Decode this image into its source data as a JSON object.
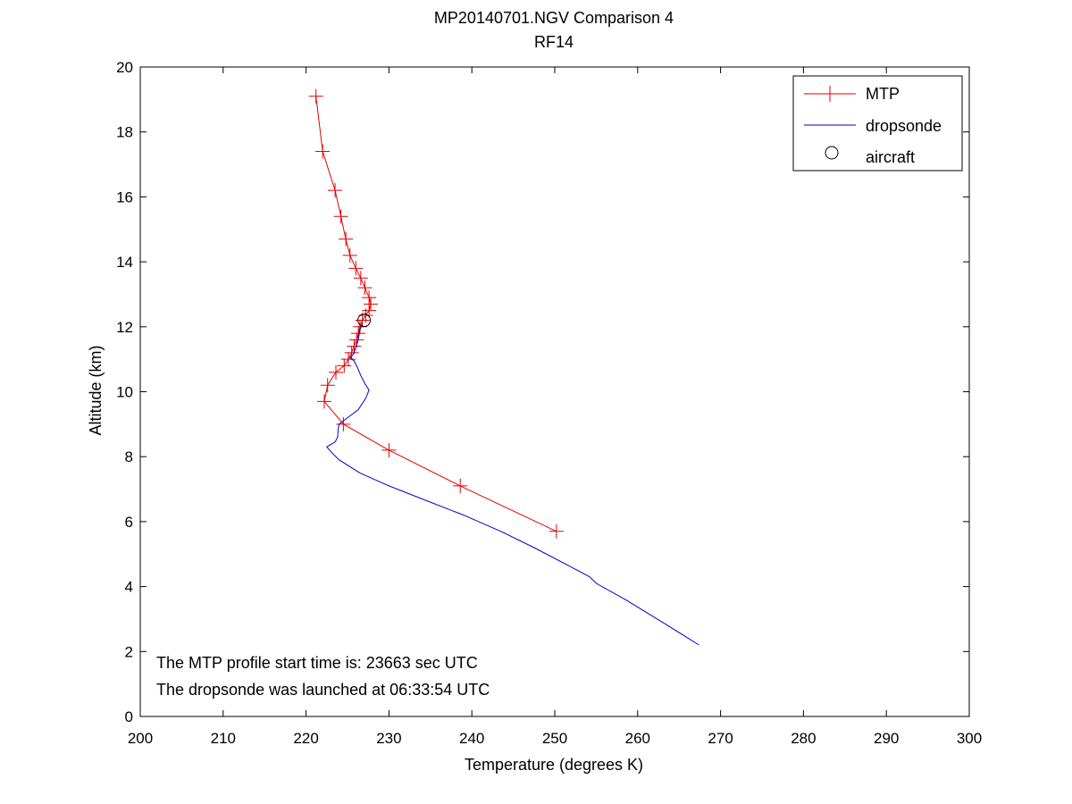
{
  "chart_data": {
    "type": "line",
    "title": "MP20140701.NGV Comparison 4",
    "subtitle": "RF14",
    "xlabel": "Temperature (degrees K)",
    "ylabel": "Altitude (km)",
    "xlim": [
      200,
      300
    ],
    "ylim": [
      0,
      20
    ],
    "x_ticks": [
      200,
      210,
      220,
      230,
      240,
      250,
      260,
      270,
      280,
      290,
      300
    ],
    "y_ticks": [
      0,
      2,
      4,
      6,
      8,
      10,
      12,
      14,
      16,
      18,
      20
    ],
    "grid": false,
    "legend_position": "top-right",
    "annotations": [
      "The MTP profile start time is: 23663 sec UTC",
      "The dropsonde was launched at 06:33:54 UTC"
    ],
    "series": [
      {
        "name": "MTP",
        "color": "#e00000",
        "marker": "plus",
        "points": [
          [
            221.2,
            19.1
          ],
          [
            222.0,
            17.4
          ],
          [
            223.5,
            16.2
          ],
          [
            224.2,
            15.4
          ],
          [
            224.8,
            14.7
          ],
          [
            225.3,
            14.2
          ],
          [
            226.0,
            13.8
          ],
          [
            226.6,
            13.5
          ],
          [
            227.1,
            13.2
          ],
          [
            227.6,
            12.9
          ],
          [
            227.8,
            12.7
          ],
          [
            227.6,
            12.5
          ],
          [
            227.2,
            12.35
          ],
          [
            226.8,
            12.2
          ],
          [
            226.5,
            12.0
          ],
          [
            226.3,
            11.8
          ],
          [
            226.1,
            11.6
          ],
          [
            225.8,
            11.4
          ],
          [
            225.5,
            11.2
          ],
          [
            225.1,
            11.0
          ],
          [
            224.6,
            10.8
          ],
          [
            223.6,
            10.6
          ],
          [
            222.6,
            10.2
          ],
          [
            222.2,
            9.7
          ],
          [
            224.5,
            9.0
          ],
          [
            230.0,
            8.2
          ],
          [
            238.6,
            7.1
          ],
          [
            250.2,
            5.7
          ]
        ]
      },
      {
        "name": "dropsonde",
        "color": "#0000cc",
        "marker": "none",
        "points": [
          [
            267.4,
            2.2
          ],
          [
            263.0,
            2.9
          ],
          [
            258.5,
            3.6
          ],
          [
            255.0,
            4.1
          ],
          [
            254.2,
            4.3
          ],
          [
            252.0,
            4.6
          ],
          [
            247.5,
            5.2
          ],
          [
            243.5,
            5.7
          ],
          [
            239.0,
            6.2
          ],
          [
            234.0,
            6.7
          ],
          [
            230.0,
            7.1
          ],
          [
            226.5,
            7.5
          ],
          [
            224.0,
            7.9
          ],
          [
            223.2,
            8.1
          ],
          [
            222.5,
            8.3
          ],
          [
            223.5,
            8.45
          ],
          [
            223.8,
            8.6
          ],
          [
            223.9,
            8.9
          ],
          [
            224.0,
            9.0
          ],
          [
            225.0,
            9.2
          ],
          [
            226.3,
            9.45
          ],
          [
            227.2,
            9.8
          ],
          [
            227.6,
            10.05
          ],
          [
            227.1,
            10.25
          ],
          [
            226.6,
            10.5
          ],
          [
            226.2,
            10.75
          ],
          [
            225.8,
            10.95
          ],
          [
            225.3,
            11.05
          ],
          [
            225.7,
            11.15
          ],
          [
            226.0,
            11.35
          ],
          [
            226.3,
            11.6
          ],
          [
            226.5,
            11.9
          ],
          [
            226.8,
            12.1
          ]
        ]
      },
      {
        "name": "aircraft",
        "color": "#000000",
        "marker": "circle",
        "points": [
          [
            227.0,
            12.2
          ]
        ]
      }
    ]
  }
}
